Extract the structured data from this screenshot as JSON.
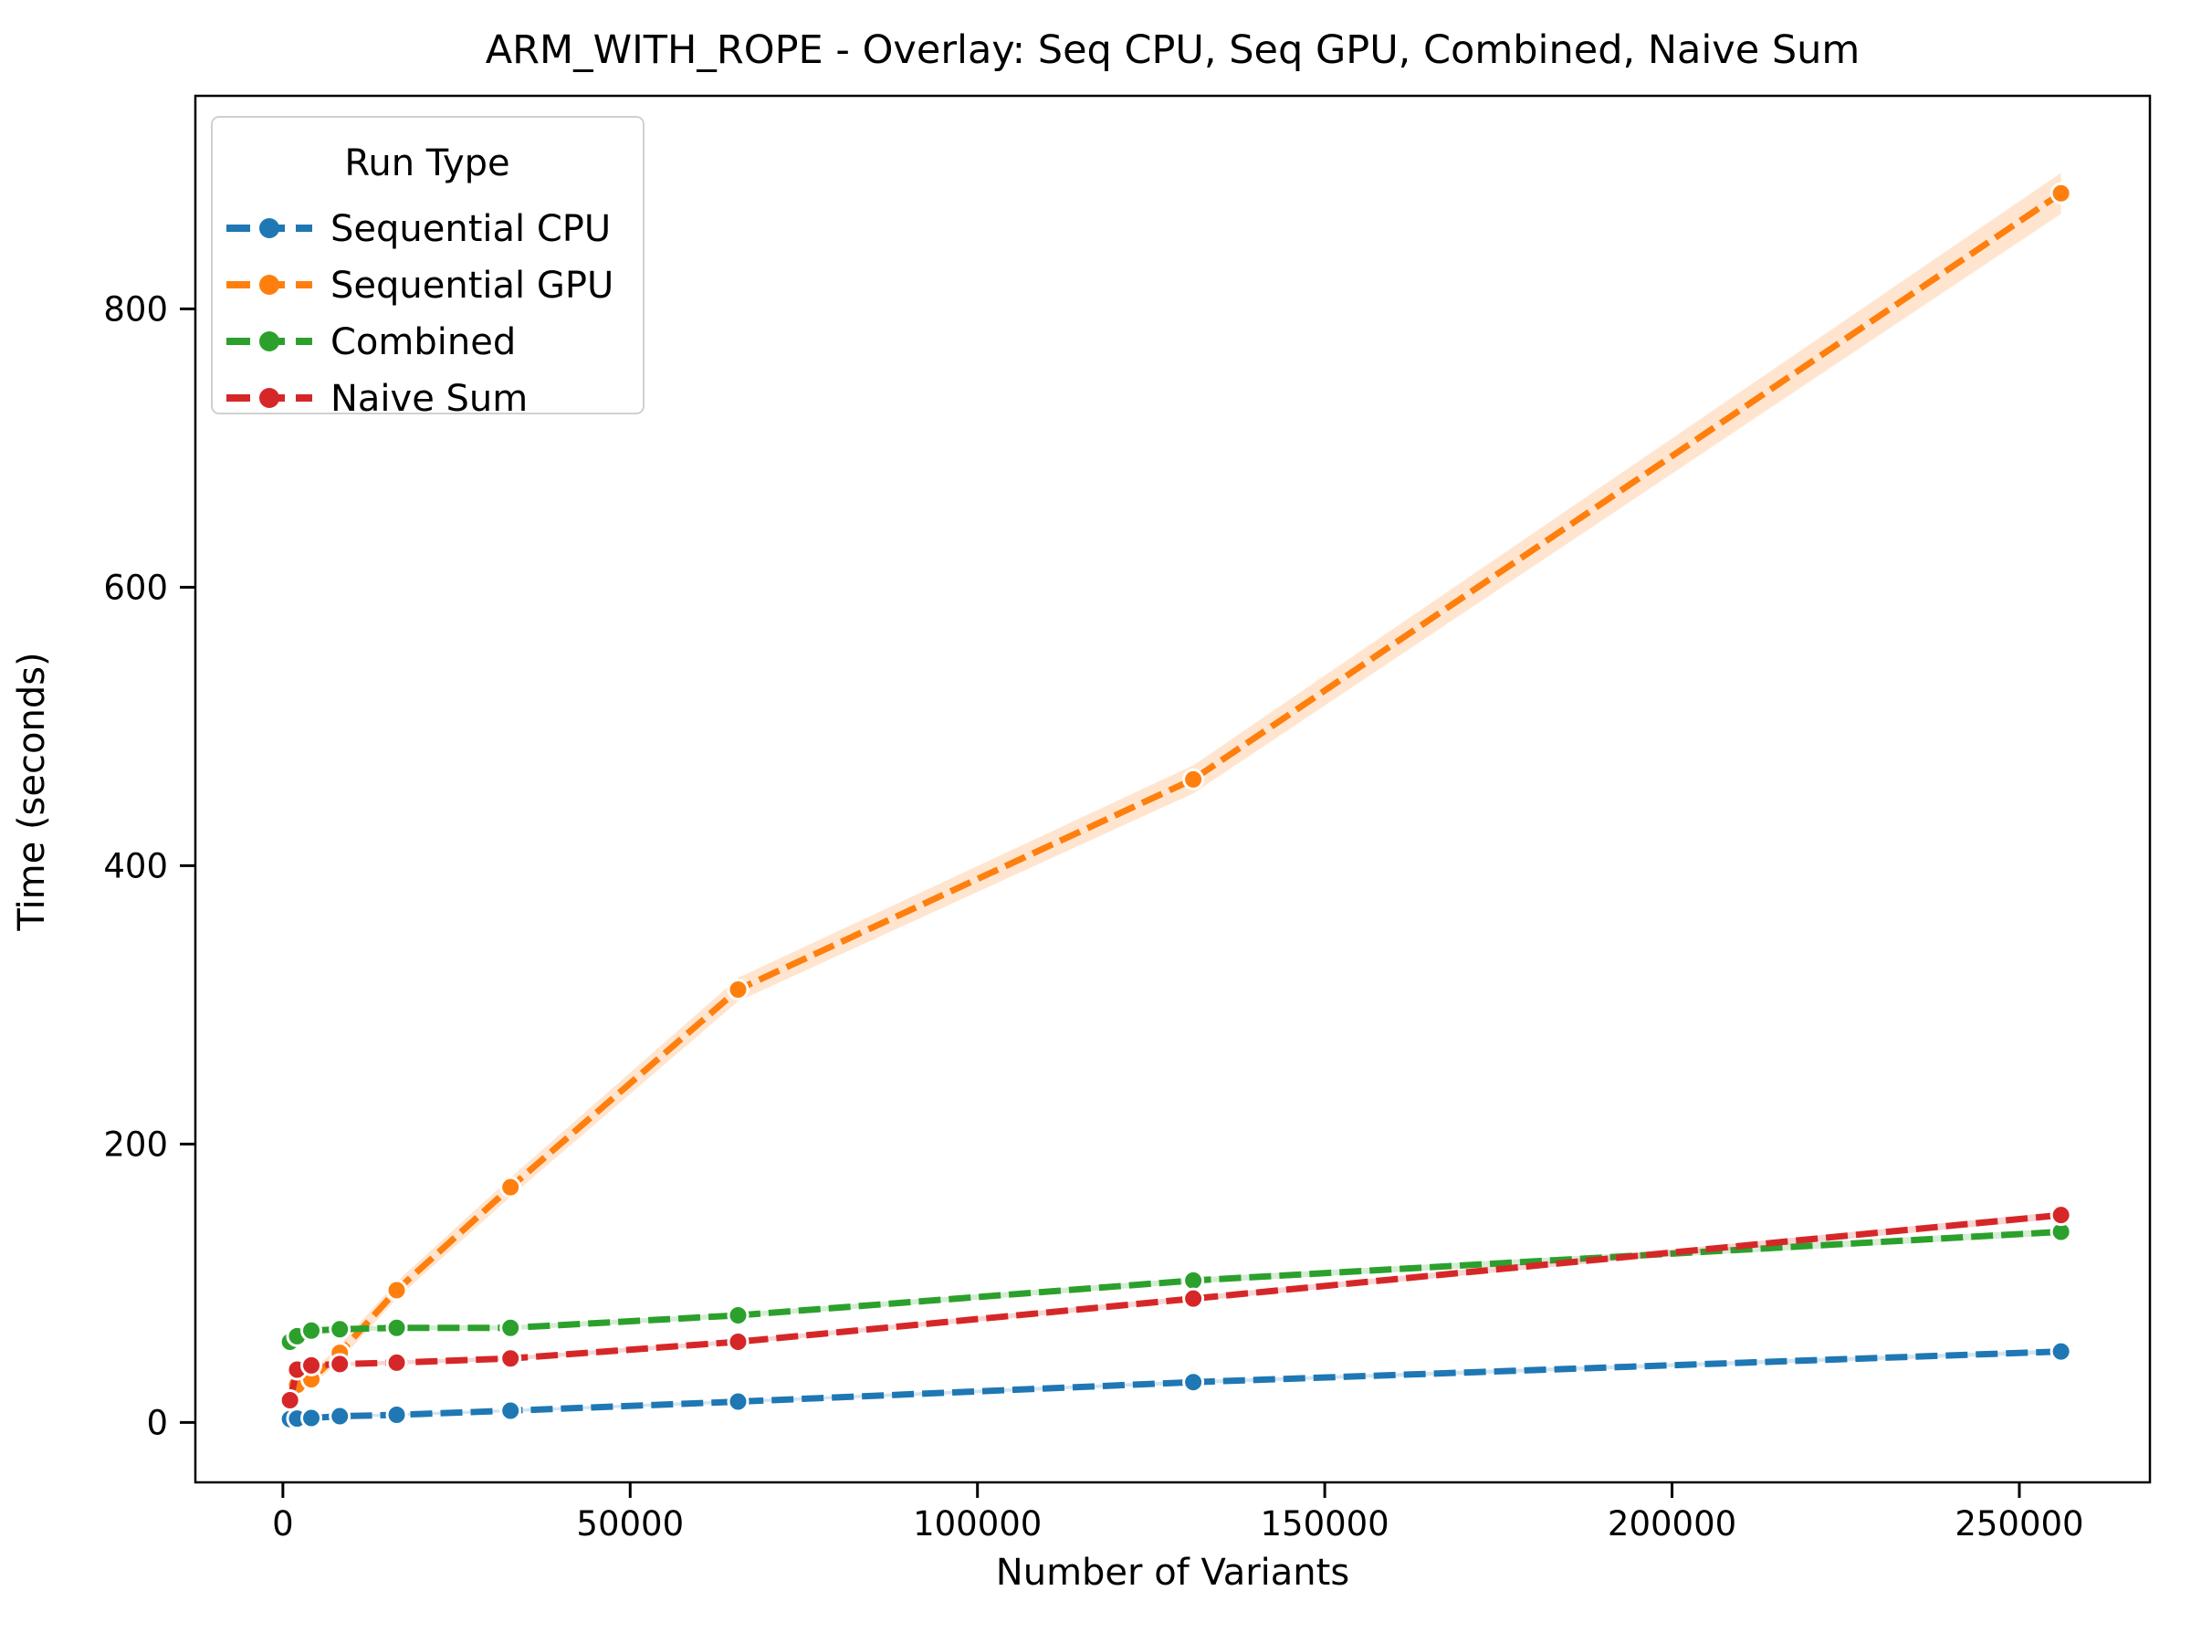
{
  "figure": {
    "background": "#ffffff",
    "title": "ARM_WITH_ROPE - Overlay: Seq CPU, Seq GPU, Combined, Naive Sum"
  },
  "chart_data": {
    "type": "line",
    "title": "ARM_WITH_ROPE - Overlay: Seq CPU, Seq GPU, Combined, Naive Sum",
    "xlabel": "Number of Variants",
    "ylabel": "Time (seconds)",
    "x": [
      1024,
      2048,
      4096,
      8192,
      16384,
      32768,
      65536,
      131072,
      256000
    ],
    "series": [
      {
        "name": "Sequential CPU",
        "color": "#1f77b4",
        "values": [
          2.5,
          2.8,
          3.2,
          4.5,
          5.5,
          8.5,
          15,
          29,
          51
        ],
        "band_base_s": 1,
        "band_frac": 0.01
      },
      {
        "name": "Sequential GPU",
        "color": "#ff7f0e",
        "values": [
          17,
          27,
          31,
          50,
          95,
          169,
          311,
          462,
          883
        ],
        "band_base_s": 5,
        "band_frac": 0.011
      },
      {
        "name": "Combined",
        "color": "#2ca02c",
        "values": [
          58,
          62,
          66,
          67,
          68,
          68,
          77,
          102,
          137
        ],
        "band_base_s": 1,
        "band_frac": 0.01
      },
      {
        "name": "Naive Sum",
        "color": "#d62728",
        "values": [
          16,
          38,
          41,
          42,
          43,
          46,
          58,
          89,
          149
        ],
        "band_base_s": 1,
        "band_frac": 0.01
      }
    ],
    "legend": {
      "title": "Run Type",
      "position": "upper left"
    },
    "x_ticks": [
      0,
      50000,
      100000,
      150000,
      200000,
      250000
    ],
    "x_tick_labels": [
      "0",
      "50000",
      "100000",
      "150000",
      "200000",
      "250000"
    ],
    "y_ticks": [
      0,
      200,
      400,
      600,
      800
    ],
    "y_tick_labels": [
      "0",
      "200",
      "400",
      "600",
      "800"
    ],
    "xlim": [
      -12600,
      268800
    ],
    "ylim": [
      -43,
      953
    ],
    "grid": false,
    "line_style": "dashed",
    "marker": "o",
    "axis_color": "#000000"
  }
}
